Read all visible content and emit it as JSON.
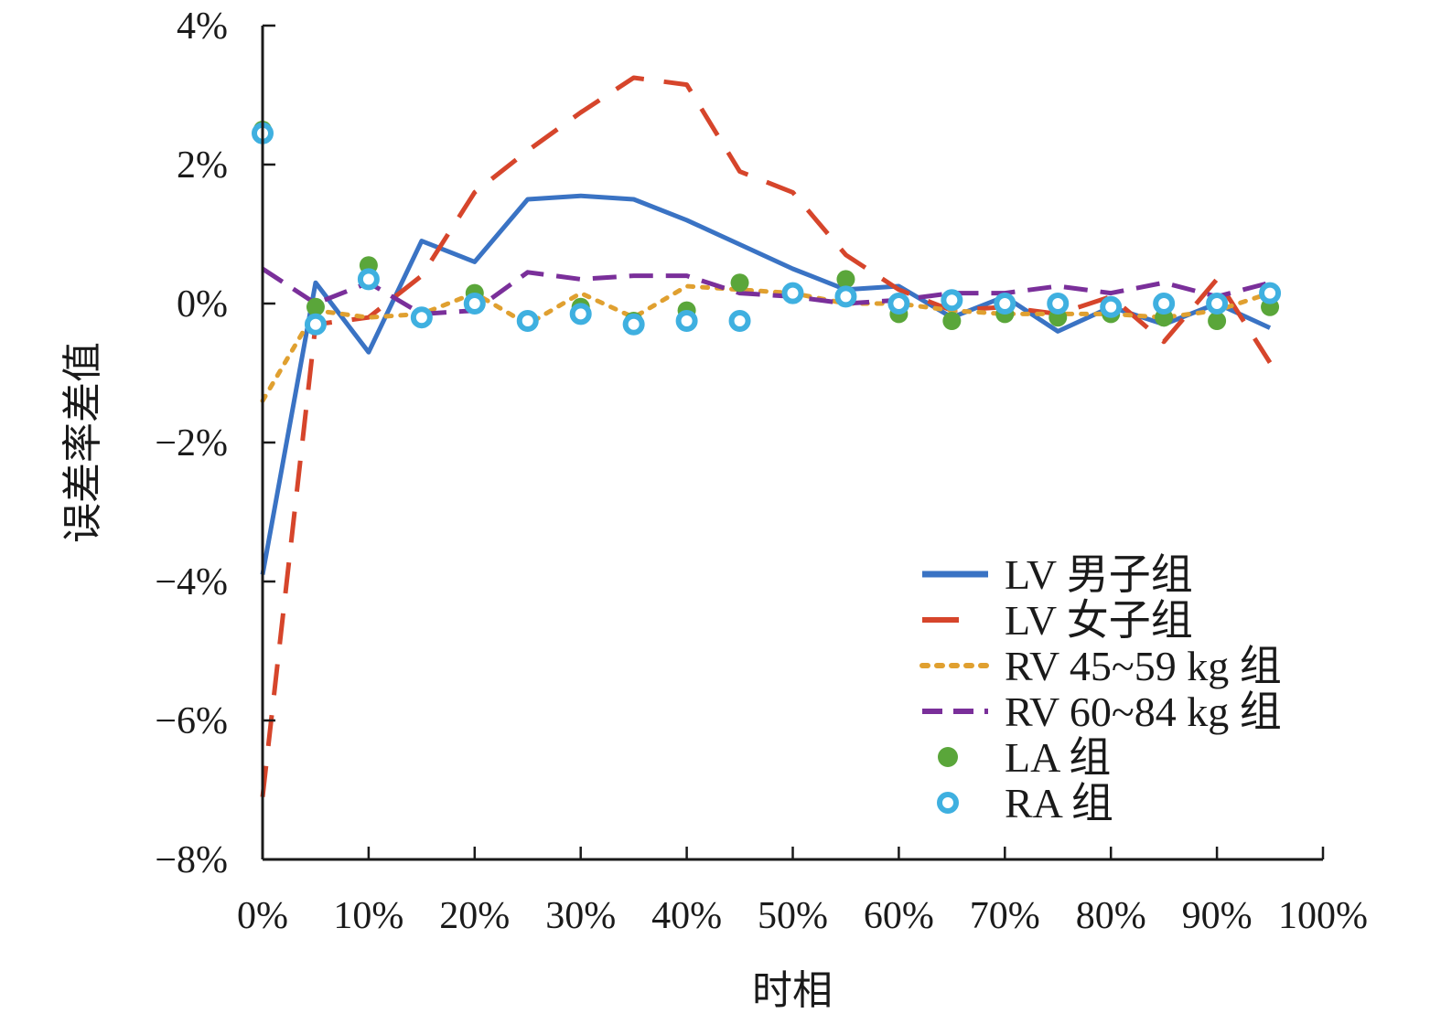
{
  "chart_data": {
    "type": "line",
    "xlabel": "时相",
    "ylabel": "误差率差值",
    "xlim": [
      0,
      100
    ],
    "ylim": [
      -8,
      4
    ],
    "x_ticks": [
      0,
      10,
      20,
      30,
      40,
      50,
      60,
      70,
      80,
      90,
      100
    ],
    "x_tick_labels": [
      "0%",
      "10%",
      "20%",
      "30%",
      "40%",
      "50%",
      "60%",
      "70%",
      "80%",
      "90%",
      "100%"
    ],
    "y_ticks": [
      4,
      2,
      0,
      -2,
      -4,
      -6,
      -8
    ],
    "y_tick_labels": [
      "4%",
      "2%",
      "0%",
      "−2%",
      "−4%",
      "−6%",
      "−8%"
    ],
    "legend_position": "bottom-right",
    "x": [
      0,
      5,
      10,
      15,
      20,
      25,
      30,
      35,
      40,
      45,
      50,
      55,
      60,
      65,
      70,
      75,
      80,
      85,
      90,
      95
    ],
    "series": [
      {
        "name": "LV 男子组",
        "style": "solid",
        "color": "#3a73c4",
        "values": [
          -3.9,
          0.3,
          -0.7,
          0.9,
          0.6,
          1.5,
          1.55,
          1.5,
          1.2,
          0.85,
          0.5,
          0.2,
          0.25,
          -0.2,
          0.1,
          -0.4,
          -0.05,
          -0.3,
          0.0,
          -0.35
        ]
      },
      {
        "name": "LV 女子组",
        "style": "dashed",
        "color": "#d6452b",
        "values": [
          -7.1,
          -0.3,
          -0.2,
          0.4,
          1.6,
          2.2,
          2.75,
          3.25,
          3.15,
          1.9,
          1.6,
          0.7,
          0.2,
          -0.1,
          -0.05,
          -0.15,
          0.1,
          -0.55,
          0.35,
          -0.85
        ]
      },
      {
        "name": "RV 45~59 kg 组",
        "style": "dotted",
        "color": "#e0a030",
        "values": [
          -1.4,
          -0.1,
          -0.2,
          -0.15,
          0.15,
          -0.3,
          0.15,
          -0.2,
          0.25,
          0.2,
          0.15,
          0.0,
          0.0,
          -0.1,
          -0.15,
          -0.15,
          -0.15,
          -0.2,
          -0.1,
          0.15
        ]
      },
      {
        "name": "RV 60~84 kg 组",
        "style": "long-dash",
        "color": "#7a2f9a",
        "values": [
          0.5,
          0.0,
          0.3,
          -0.15,
          -0.1,
          0.45,
          0.35,
          0.4,
          0.4,
          0.15,
          0.1,
          0.0,
          0.05,
          0.15,
          0.15,
          0.25,
          0.15,
          0.3,
          0.1,
          0.3
        ]
      },
      {
        "name": "LA 组",
        "style": "filled-marker",
        "color": "#5aa63a",
        "values": [
          2.5,
          -0.05,
          0.55,
          -0.2,
          0.15,
          -0.25,
          -0.05,
          -0.25,
          -0.1,
          0.3,
          0.15,
          0.35,
          -0.15,
          -0.25,
          -0.15,
          -0.2,
          -0.15,
          -0.2,
          -0.25,
          -0.05
        ]
      },
      {
        "name": "RA 组",
        "style": "ring-marker",
        "color": "#3fb0e0",
        "values": [
          2.45,
          -0.3,
          0.35,
          -0.2,
          0.0,
          -0.25,
          -0.15,
          -0.3,
          -0.25,
          -0.25,
          0.15,
          0.1,
          0.0,
          0.05,
          0.0,
          0.0,
          -0.05,
          0.0,
          0.0,
          0.15
        ]
      }
    ]
  }
}
